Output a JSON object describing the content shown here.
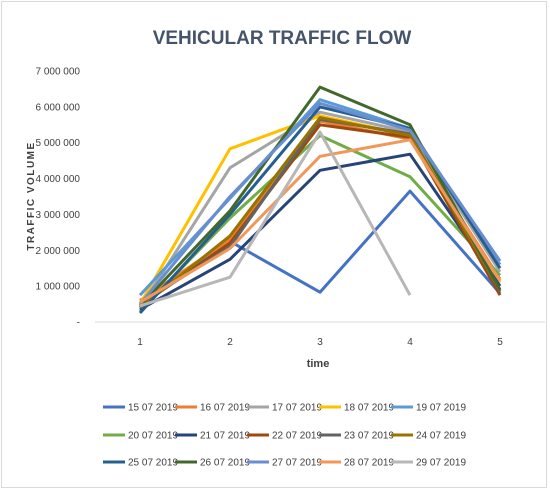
{
  "chart_data": {
    "type": "line",
    "title": "VEHICULAR TRAFFIC FLOW",
    "xlabel": "time",
    "ylabel": "TRAFFIC VOLUME",
    "x": [
      1,
      2,
      3,
      4,
      5
    ],
    "x_tick_labels": [
      "1",
      "2",
      "3",
      "4",
      "5"
    ],
    "ylim": [
      0,
      7000000
    ],
    "y_ticks": [
      0,
      1000000,
      2000000,
      3000000,
      4000000,
      5000000,
      6000000,
      7000000
    ],
    "y_tick_labels": [
      "-",
      "1 000 000",
      "2 000 000",
      "3 000 000",
      "4 000 000",
      "5 000 000",
      "6 000 000",
      "7 000 000"
    ],
    "grid": false,
    "legend_position": "bottom",
    "series": [
      {
        "name": "15 07 2019",
        "color": "#4472c4",
        "values": [
          500000,
          2250000,
          830000,
          3650000,
          800000
        ]
      },
      {
        "name": "16 07 2019",
        "color": "#ed7d31",
        "values": [
          600000,
          2300000,
          5600000,
          5100000,
          1200000
        ]
      },
      {
        "name": "17 07 2019",
        "color": "#a5a5a5",
        "values": [
          400000,
          4300000,
          5850000,
          5300000,
          1400000
        ]
      },
      {
        "name": "18 07 2019",
        "color": "#ffc000",
        "values": [
          500000,
          4830000,
          5750000,
          5200000,
          1100000
        ]
      },
      {
        "name": "19 07 2019",
        "color": "#5b9bd5",
        "values": [
          750000,
          3450000,
          6200000,
          5400000,
          1600000
        ]
      },
      {
        "name": "20 07 2019",
        "color": "#70ad47",
        "values": [
          300000,
          2900000,
          5200000,
          4050000,
          1300000
        ]
      },
      {
        "name": "21 07 2019",
        "color": "#264478",
        "values": [
          350000,
          1750000,
          4230000,
          4680000,
          1000000
        ]
      },
      {
        "name": "22 07 2019",
        "color": "#9e480e",
        "values": [
          450000,
          2200000,
          5500000,
          5150000,
          750000
        ]
      },
      {
        "name": "23 07 2019",
        "color": "#636363",
        "values": [
          500000,
          2100000,
          5650000,
          5250000,
          850000
        ]
      },
      {
        "name": "24 07 2019",
        "color": "#997300",
        "values": [
          400000,
          2400000,
          5700000,
          5200000,
          900000
        ]
      },
      {
        "name": "25 07 2019",
        "color": "#255e91",
        "values": [
          250000,
          3000000,
          6000000,
          5400000,
          1500000
        ]
      },
      {
        "name": "26 07 2019",
        "color": "#43682b",
        "values": [
          450000,
          3100000,
          6550000,
          5500000,
          900000
        ]
      },
      {
        "name": "27 07 2019",
        "color": "#698ed0",
        "values": [
          500000,
          3500000,
          6100000,
          5350000,
          1700000
        ]
      },
      {
        "name": "28 07 2019",
        "color": "#f1975a",
        "values": [
          550000,
          2050000,
          4620000,
          5080000,
          1150000
        ]
      },
      {
        "name": "29 07 2019",
        "color": "#b7b7b7",
        "values": [
          450000,
          1250000,
          5300000,
          750000,
          null
        ]
      }
    ]
  }
}
